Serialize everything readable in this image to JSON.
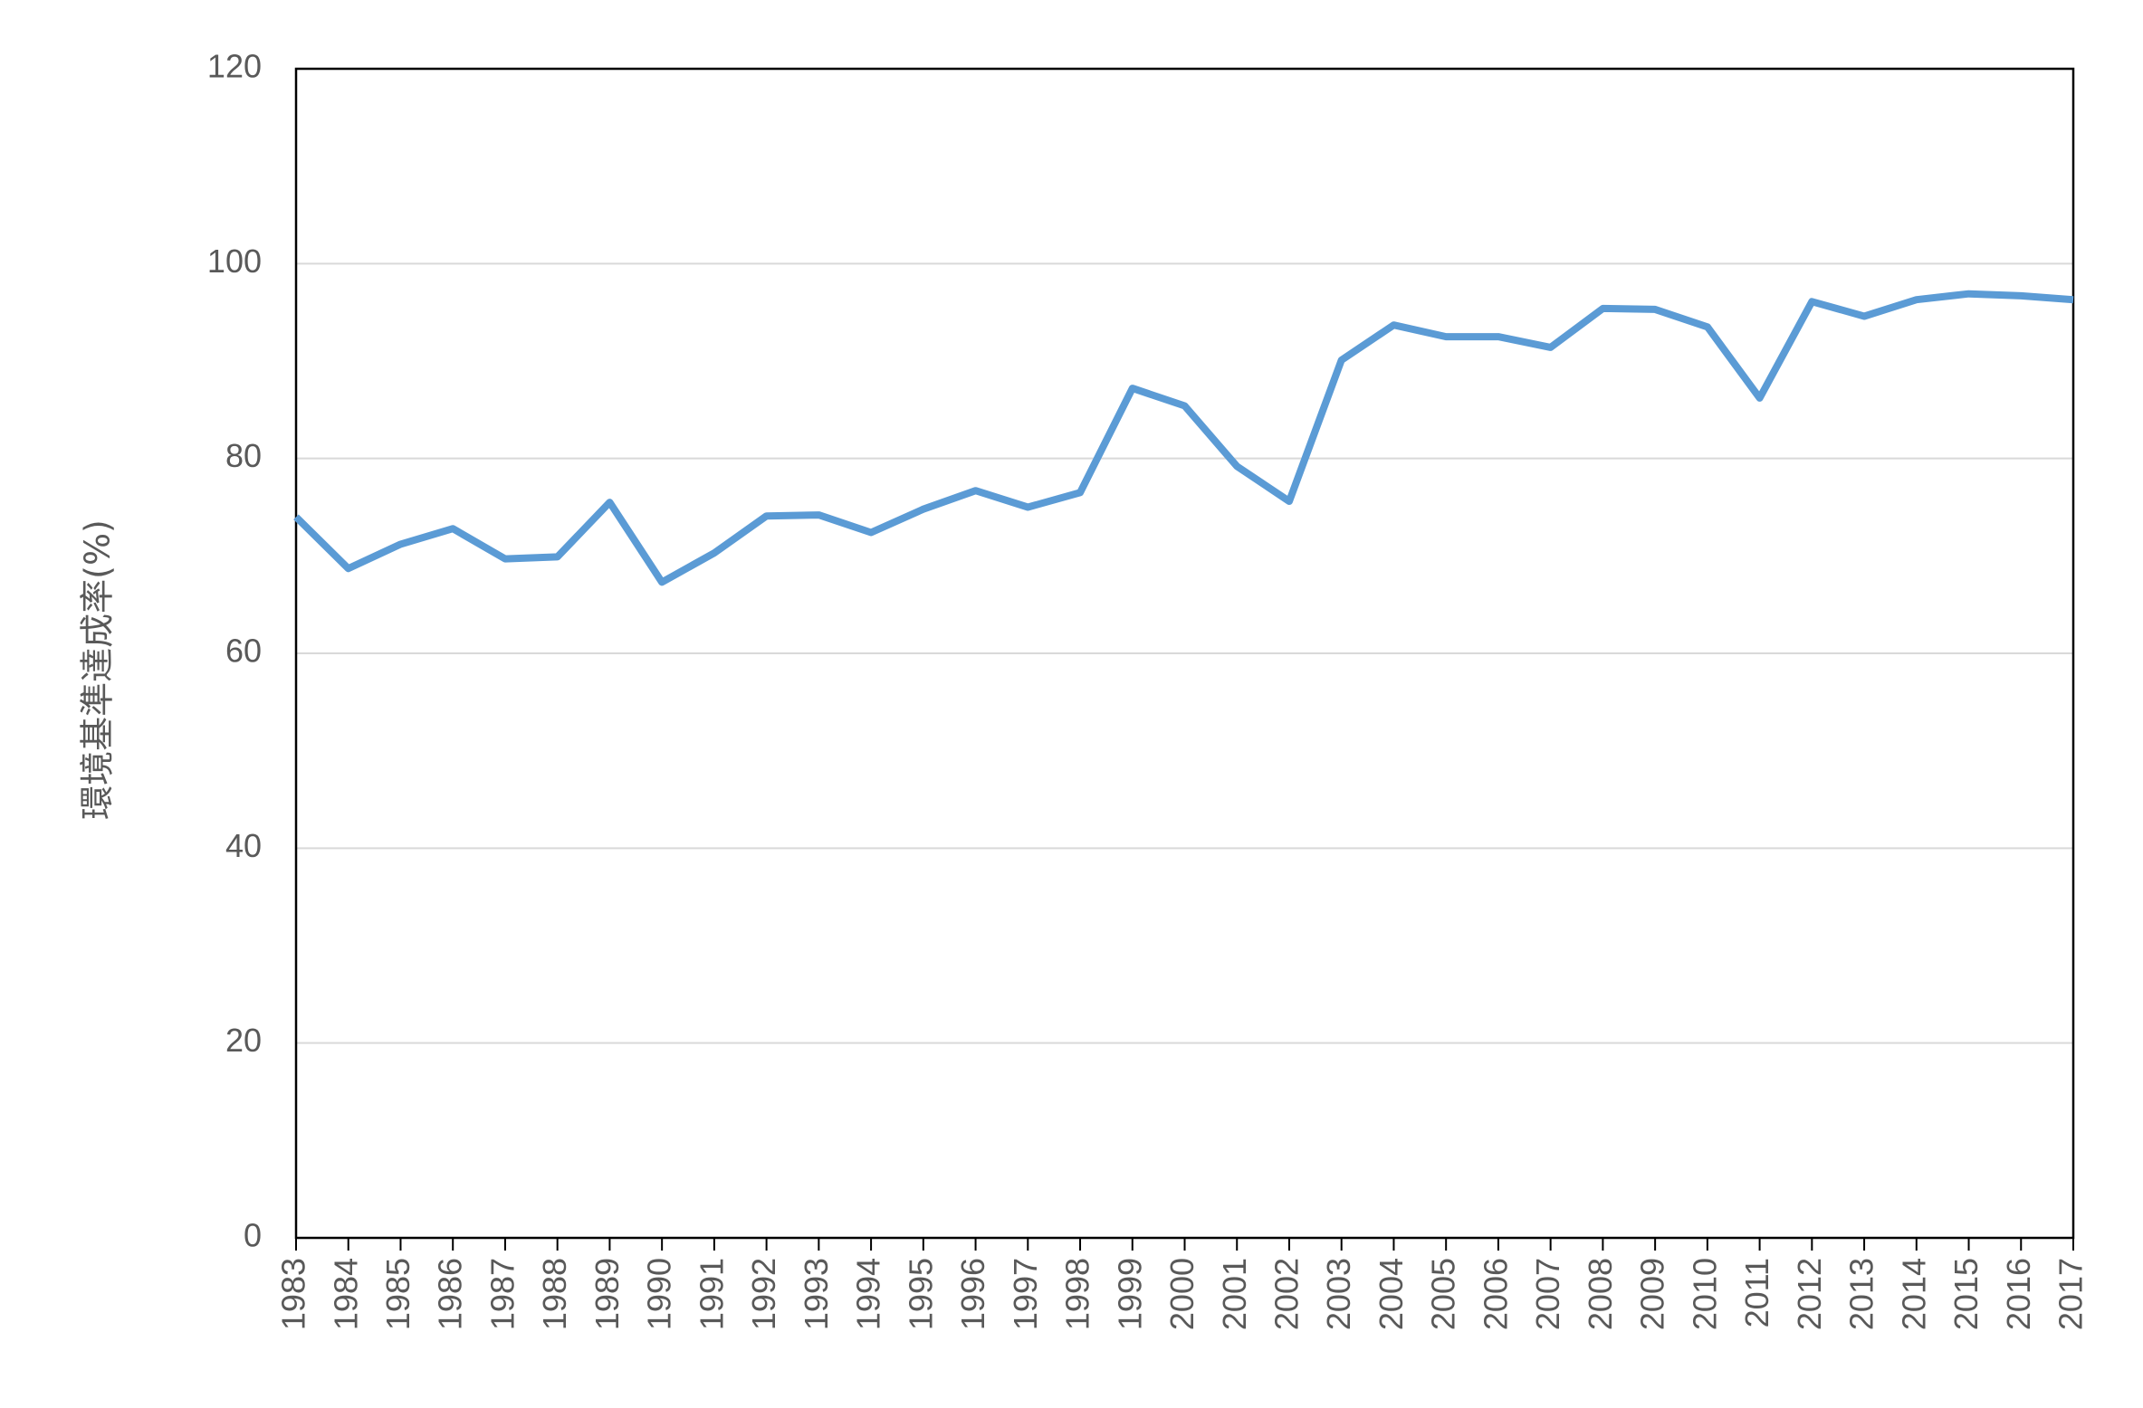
{
  "chart_data": {
    "type": "line",
    "title": "",
    "xlabel": "",
    "ylabel": "環境基準達成率(%)",
    "ylim": [
      0,
      120
    ],
    "yticks": [
      0,
      20,
      40,
      60,
      80,
      100,
      120
    ],
    "grid": true,
    "legend": "none",
    "series": [
      {
        "color": "#5B9BD5",
        "x": [
          "1983",
          "1984",
          "1985",
          "1986",
          "1987",
          "1988",
          "1989",
          "1990",
          "1991",
          "1992",
          "1993",
          "1994",
          "1995",
          "1996",
          "1997",
          "1998",
          "1999",
          "2000",
          "2001",
          "2002",
          "2003",
          "2004",
          "2005",
          "2006",
          "2007",
          "2008",
          "2009",
          "2010",
          "2011",
          "2012",
          "2013",
          "2014",
          "2015",
          "2016",
          "2017"
        ],
        "values": [
          74.0,
          68.7,
          71.2,
          72.8,
          69.7,
          69.9,
          75.5,
          67.3,
          70.3,
          74.1,
          74.2,
          72.4,
          74.8,
          76.7,
          75.0,
          76.5,
          87.2,
          85.4,
          79.2,
          75.6,
          90.1,
          93.7,
          92.5,
          92.5,
          91.4,
          95.4,
          95.3,
          93.5,
          86.2,
          96.1,
          94.6,
          96.3,
          96.9,
          96.7,
          96.3
        ]
      }
    ],
    "colors": {
      "line": "#5B9BD5",
      "gridline": "#D9D9D9",
      "axis": "#000000",
      "text": "#595959"
    }
  }
}
